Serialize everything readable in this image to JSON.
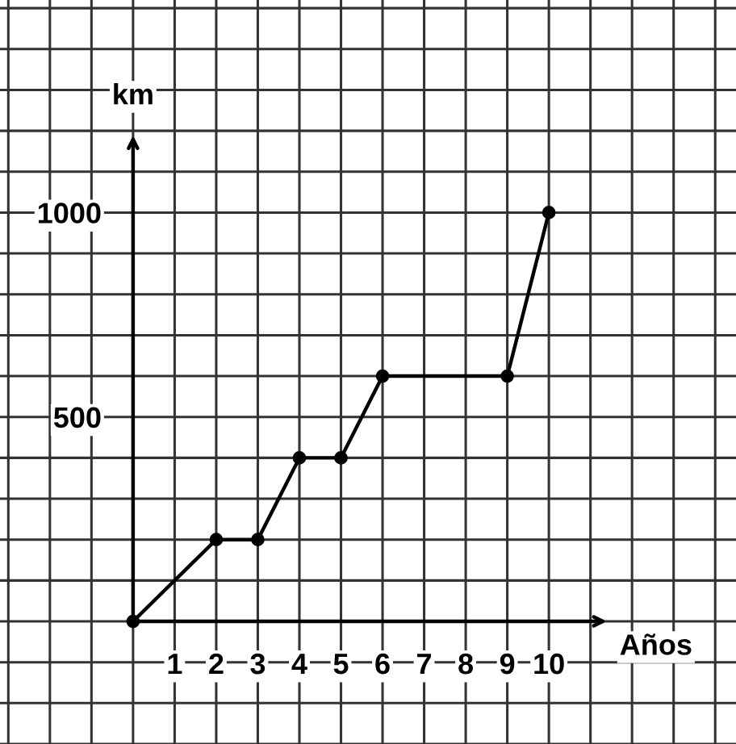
{
  "chart_data": {
    "type": "line",
    "xlabel": "Años",
    "ylabel": "km",
    "x": [
      0,
      2,
      3,
      4,
      5,
      6,
      9,
      10
    ],
    "series": [
      {
        "color": "#000000",
        "values": [
          0,
          200,
          200,
          400,
          400,
          600,
          600,
          1000
        ]
      }
    ],
    "marker": "circle",
    "line_style": "solid",
    "grid": true,
    "xlim": [
      -3.2,
      14.5
    ],
    "ylim": [
      -300,
      1520
    ],
    "xticks": [
      {
        "value": -3,
        "label": null
      },
      {
        "value": -2,
        "label": null
      },
      {
        "value": -1,
        "label": null
      },
      {
        "value": 0,
        "label": null
      },
      1,
      2,
      3,
      4,
      5,
      6,
      7,
      8,
      9,
      10,
      {
        "value": 11,
        "label": null
      },
      {
        "value": 12,
        "label": null
      },
      {
        "value": 13,
        "label": null
      },
      {
        "value": 14,
        "label": null
      }
    ],
    "yticks": [
      {
        "value": -300,
        "label": null
      },
      {
        "value": -200,
        "label": null
      },
      {
        "value": -100,
        "label": null
      },
      {
        "value": 0,
        "label": null
      },
      {
        "value": 100,
        "label": null
      },
      {
        "value": 200,
        "label": null
      },
      {
        "value": 300,
        "label": null
      },
      {
        "value": 400,
        "label": null
      },
      500,
      {
        "value": 600,
        "label": null
      },
      {
        "value": 700,
        "label": null
      },
      {
        "value": 800,
        "label": null
      },
      {
        "value": 900,
        "label": null
      },
      1000,
      {
        "value": 1100,
        "label": null
      },
      {
        "value": 1200,
        "label": null
      },
      {
        "value": 1300,
        "label": null
      },
      {
        "value": 1400,
        "label": null
      },
      {
        "value": 1500,
        "label": null
      }
    ]
  }
}
